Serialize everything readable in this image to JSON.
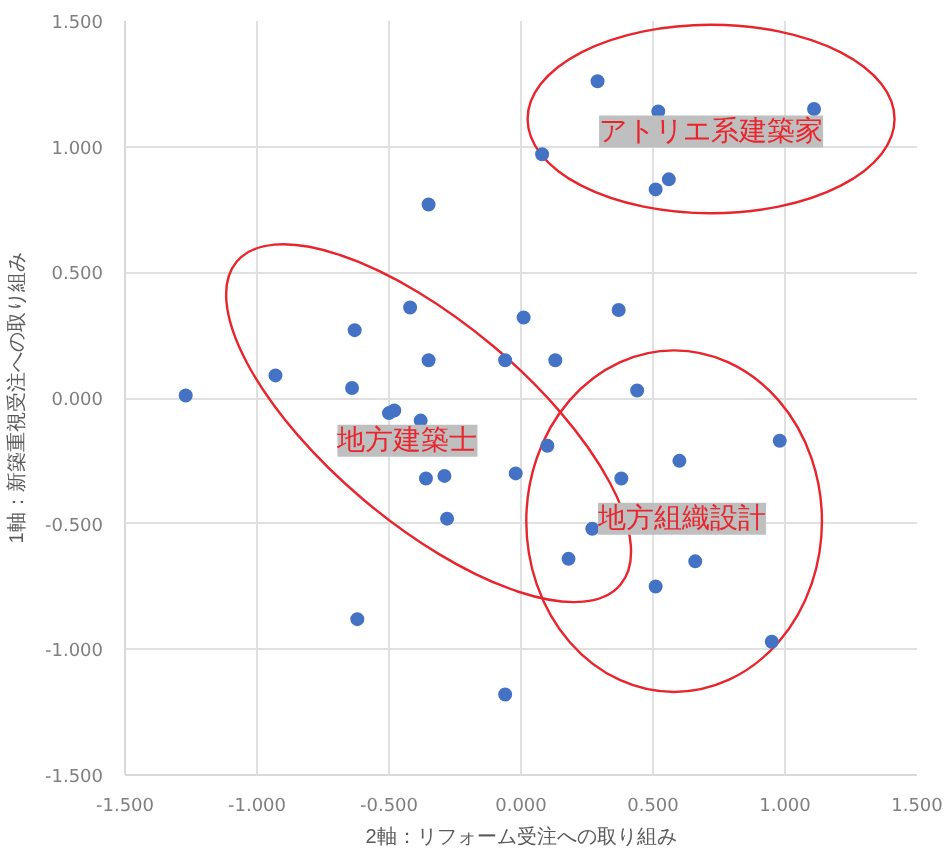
{
  "chart_data": {
    "type": "scatter",
    "xlabel": "2軸：リフォーム受注への取り組み",
    "ylabel": "1軸：新築重視受注への取り組み",
    "x": [
      -1.27,
      -0.93,
      -0.64,
      -0.63,
      -0.42,
      -0.35,
      -0.35,
      -0.06,
      0.01,
      0.29,
      0.52,
      1.11,
      0.08,
      0.51,
      0.56,
      0.37,
      0.13,
      0.44,
      -0.5,
      -0.48,
      -0.38,
      -0.36,
      -0.29,
      -0.28,
      -0.02,
      -0.62,
      -0.06,
      0.1,
      0.98,
      0.6,
      0.38,
      0.27,
      0.18,
      0.66,
      0.51,
      0.95
    ],
    "values": [
      0.01,
      0.09,
      0.04,
      0.27,
      0.36,
      0.15,
      0.77,
      0.15,
      0.32,
      1.26,
      1.14,
      1.15,
      0.97,
      0.83,
      0.87,
      0.35,
      0.15,
      0.03,
      -0.06,
      -0.05,
      -0.09,
      -0.32,
      -0.31,
      -0.48,
      -0.3,
      -0.88,
      -1.18,
      -0.19,
      -0.17,
      -0.25,
      -0.32,
      -0.52,
      -0.64,
      -0.65,
      -0.75,
      -0.97
    ],
    "color": "#4472c4",
    "marker": "circle",
    "grid": true,
    "xlim": [
      -1.5,
      1.5
    ],
    "ylim": [
      -1.5,
      1.5
    ],
    "xticks": [
      {
        "value": -1.5,
        "label": "-1.500"
      },
      {
        "value": -1,
        "label": "-1.000"
      },
      {
        "value": -0.5,
        "label": "-0.500"
      },
      {
        "value": 0,
        "label": "0.000"
      },
      {
        "value": 0.5,
        "label": "0.500"
      },
      {
        "value": 1,
        "label": "1.000"
      },
      {
        "value": 1.5,
        "label": "1.500"
      }
    ],
    "yticks": [
      {
        "value": -1.5,
        "label": "-1.500"
      },
      {
        "value": -1,
        "label": "-1.000"
      },
      {
        "value": -0.5,
        "label": "-0.500"
      },
      {
        "value": 0,
        "label": "0.000"
      },
      {
        "value": 0.5,
        "label": "0.500"
      },
      {
        "value": 1,
        "label": "1.000"
      },
      {
        "value": 1.5,
        "label": "1.500"
      }
    ],
    "annotations": [
      "アトリエ系建築家",
      "地方建築士",
      "地方組織設計"
    ]
  }
}
